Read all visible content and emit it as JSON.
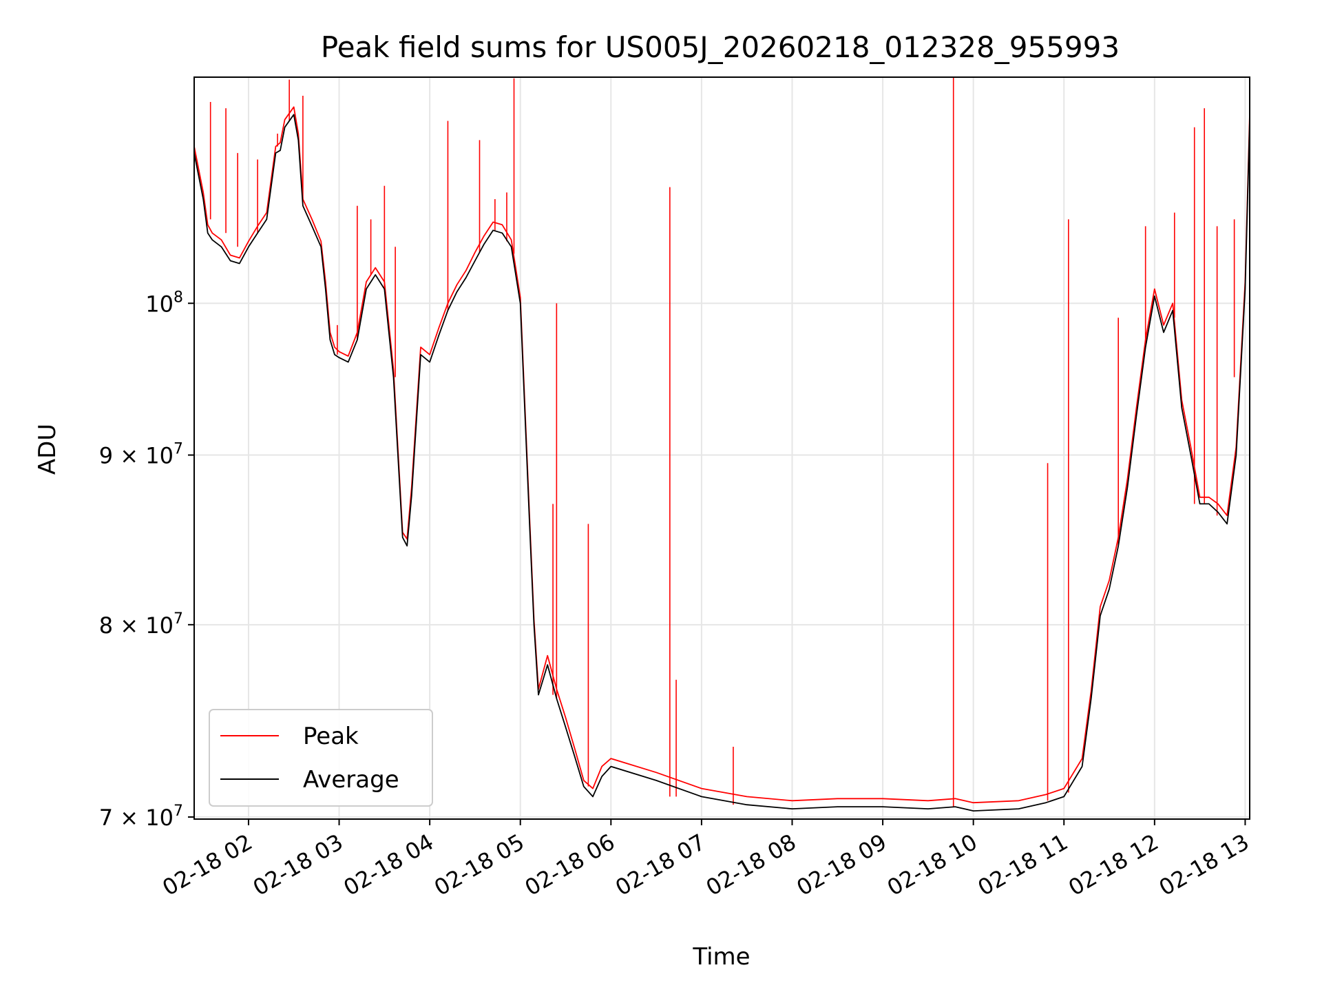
{
  "chart_data": {
    "type": "line",
    "title": "Peak field sums for US005J_20260218_012328_955993",
    "xlabel": "Time",
    "ylabel": "ADU",
    "y_scale": "log",
    "ylim": [
      69900000,
      117000000
    ],
    "xlim_hours": [
      1.4,
      13.05
    ],
    "grid": true,
    "legend_position": "lower-left",
    "x_ticks": [
      {
        "value": 2,
        "label": "02-18 02"
      },
      {
        "value": 3,
        "label": "02-18 03"
      },
      {
        "value": 4,
        "label": "02-18 04"
      },
      {
        "value": 5,
        "label": "02-18 05"
      },
      {
        "value": 6,
        "label": "02-18 06"
      },
      {
        "value": 7,
        "label": "02-18 07"
      },
      {
        "value": 8,
        "label": "02-18 08"
      },
      {
        "value": 9,
        "label": "02-18 09"
      },
      {
        "value": 10,
        "label": "02-18 10"
      },
      {
        "value": 11,
        "label": "02-18 11"
      },
      {
        "value": 12,
        "label": "02-18 12"
      },
      {
        "value": 13,
        "label": "02-18 13"
      }
    ],
    "y_ticks": [
      {
        "value": 70000000,
        "mantissa": "7",
        "exponent": "7"
      },
      {
        "value": 80000000,
        "mantissa": "8",
        "exponent": "7"
      },
      {
        "value": 90000000,
        "mantissa": "9",
        "exponent": "7"
      },
      {
        "value": 100000000,
        "mantissa": "",
        "exponent": "8"
      }
    ],
    "times_label_base": "10",
    "times_sign": "×",
    "series": [
      {
        "name": "Average",
        "color": "#000000",
        "x": [
          1.4,
          1.5,
          1.55,
          1.6,
          1.7,
          1.8,
          1.9,
          2.0,
          2.1,
          2.2,
          2.3,
          2.35,
          2.4,
          2.5,
          2.55,
          2.6,
          2.7,
          2.8,
          2.85,
          2.9,
          2.95,
          3.0,
          3.1,
          3.2,
          3.3,
          3.4,
          3.5,
          3.6,
          3.7,
          3.75,
          3.8,
          3.9,
          4.0,
          4.1,
          4.2,
          4.3,
          4.4,
          4.5,
          4.6,
          4.7,
          4.8,
          4.9,
          5.0,
          5.1,
          5.15,
          5.2,
          5.3,
          5.4,
          5.5,
          5.6,
          5.7,
          5.8,
          5.9,
          6.0,
          6.5,
          7.0,
          7.5,
          8.0,
          8.5,
          9.0,
          9.5,
          9.8,
          10.0,
          10.5,
          10.8,
          11.0,
          11.2,
          11.3,
          11.4,
          11.5,
          11.6,
          11.7,
          11.8,
          11.9,
          12.0,
          12.1,
          12.2,
          12.3,
          12.4,
          12.5,
          12.6,
          12.7,
          12.8,
          12.9,
          13.0,
          13.05
        ],
        "values": [
          111000000,
          107500000,
          105000000,
          104500000,
          104000000,
          103000000,
          102800000,
          104000000,
          105000000,
          106000000,
          111000000,
          111200000,
          113000000,
          114000000,
          112000000,
          107000000,
          105500000,
          104000000,
          101000000,
          97500000,
          96500000,
          96300000,
          96000000,
          97500000,
          101000000,
          102000000,
          101000000,
          95000000,
          85000000,
          84500000,
          87500000,
          96500000,
          96000000,
          97800000,
          99500000,
          100800000,
          101800000,
          103000000,
          104200000,
          105200000,
          105000000,
          104000000,
          100000000,
          86000000,
          80000000,
          76200000,
          77800000,
          76000000,
          74500000,
          73000000,
          71500000,
          71000000,
          72000000,
          72500000,
          71800000,
          71000000,
          70600000,
          70400000,
          70500000,
          70500000,
          70400000,
          70500000,
          70300000,
          70400000,
          70700000,
          71000000,
          72500000,
          76000000,
          80500000,
          82000000,
          84500000,
          88000000,
          92500000,
          97000000,
          100500000,
          98000000,
          99500000,
          93000000,
          90000000,
          87000000,
          87000000,
          86500000,
          85800000,
          90000000,
          101000000,
          113500000
        ]
      },
      {
        "name": "Peak",
        "color": "#ff0000",
        "x": [
          1.4,
          1.5,
          1.55,
          1.6,
          1.7,
          1.8,
          1.9,
          2.0,
          2.1,
          2.2,
          2.3,
          2.35,
          2.4,
          2.5,
          2.55,
          2.6,
          2.7,
          2.8,
          2.85,
          2.9,
          2.95,
          3.0,
          3.1,
          3.2,
          3.3,
          3.4,
          3.5,
          3.6,
          3.7,
          3.75,
          3.8,
          3.9,
          4.0,
          4.1,
          4.2,
          4.3,
          4.4,
          4.5,
          4.6,
          4.7,
          4.8,
          4.9,
          5.0,
          5.1,
          5.15,
          5.2,
          5.3,
          5.4,
          5.5,
          5.6,
          5.7,
          5.8,
          5.9,
          6.0,
          6.5,
          7.0,
          7.5,
          8.0,
          8.5,
          9.0,
          9.5,
          9.8,
          10.0,
          10.5,
          10.8,
          11.0,
          11.2,
          11.3,
          11.4,
          11.5,
          11.6,
          11.7,
          11.8,
          11.9,
          12.0,
          12.1,
          12.2,
          12.3,
          12.4,
          12.5,
          12.6,
          12.7,
          12.8,
          12.9,
          13.0,
          13.05
        ],
        "values": [
          111500000,
          108000000,
          105600000,
          105000000,
          104500000,
          103400000,
          103200000,
          104400000,
          105500000,
          106500000,
          111500000,
          111800000,
          113600000,
          114600000,
          112500000,
          107500000,
          106000000,
          104400000,
          101500000,
          98000000,
          97000000,
          96700000,
          96400000,
          98000000,
          101500000,
          102500000,
          101500000,
          95500000,
          85300000,
          84900000,
          88000000,
          97000000,
          96500000,
          98300000,
          100000000,
          101300000,
          102300000,
          103600000,
          104800000,
          105800000,
          105600000,
          104500000,
          100400000,
          86400000,
          80300000,
          76500000,
          78300000,
          76500000,
          75000000,
          73400000,
          71800000,
          71400000,
          72500000,
          72900000,
          72200000,
          71400000,
          71000000,
          70800000,
          70900000,
          70900000,
          70800000,
          70900000,
          70700000,
          70800000,
          71100000,
          71400000,
          72900000,
          76400000,
          81000000,
          82500000,
          85000000,
          88500000,
          93000000,
          97500000,
          101000000,
          98500000,
          100000000,
          93500000,
          90500000,
          87400000,
          87400000,
          87000000,
          86300000,
          90500000,
          101500000,
          114000000
        ]
      }
    ],
    "peak_spikes": [
      {
        "x": 1.58,
        "peak": 115000000,
        "avg": 106000000
      },
      {
        "x": 1.75,
        "peak": 114500000,
        "avg": 105000000
      },
      {
        "x": 1.88,
        "peak": 111000000,
        "avg": 104000000
      },
      {
        "x": 2.1,
        "peak": 110500000,
        "avg": 105000000
      },
      {
        "x": 2.32,
        "peak": 112500000,
        "avg": 111500000
      },
      {
        "x": 2.45,
        "peak": 116800000,
        "avg": 113500000
      },
      {
        "x": 2.6,
        "peak": 115500000,
        "avg": 107500000
      },
      {
        "x": 2.98,
        "peak": 98500000,
        "avg": 96500000
      },
      {
        "x": 3.2,
        "peak": 107000000,
        "avg": 97500000
      },
      {
        "x": 3.35,
        "peak": 106000000,
        "avg": 102000000
      },
      {
        "x": 3.5,
        "peak": 108500000,
        "avg": 101000000
      },
      {
        "x": 3.62,
        "peak": 104000000,
        "avg": 95000000
      },
      {
        "x": 4.2,
        "peak": 113500000,
        "avg": 99500000
      },
      {
        "x": 4.55,
        "peak": 112000000,
        "avg": 103600000
      },
      {
        "x": 4.72,
        "peak": 107500000,
        "avg": 105200000
      },
      {
        "x": 4.85,
        "peak": 108000000,
        "avg": 104400000
      },
      {
        "x": 4.93,
        "peak": 116900000,
        "avg": 103500000
      },
      {
        "x": 5.4,
        "peak": 100000000,
        "avg": 76000000
      },
      {
        "x": 5.36,
        "peak": 87000000,
        "avg": 76200000
      },
      {
        "x": 5.75,
        "peak": 85800000,
        "avg": 71500000
      },
      {
        "x": 6.65,
        "peak": 108400000,
        "avg": 71000000
      },
      {
        "x": 6.72,
        "peak": 77000000,
        "avg": 71000000
      },
      {
        "x": 7.35,
        "peak": 73500000,
        "avg": 70600000
      },
      {
        "x": 9.78,
        "peak": 117000000,
        "avg": 70500000
      },
      {
        "x": 10.82,
        "peak": 89500000,
        "avg": 70800000
      },
      {
        "x": 11.05,
        "peak": 106000000,
        "avg": 71200000
      },
      {
        "x": 11.6,
        "peak": 99000000,
        "avg": 84500000
      },
      {
        "x": 11.9,
        "peak": 105500000,
        "avg": 97000000
      },
      {
        "x": 12.22,
        "peak": 106500000,
        "avg": 99000000
      },
      {
        "x": 12.44,
        "peak": 113000000,
        "avg": 87000000
      },
      {
        "x": 12.55,
        "peak": 114500000,
        "avg": 87000000
      },
      {
        "x": 12.69,
        "peak": 105500000,
        "avg": 86300000
      },
      {
        "x": 12.88,
        "peak": 106000000,
        "avg": 95000000
      }
    ]
  }
}
